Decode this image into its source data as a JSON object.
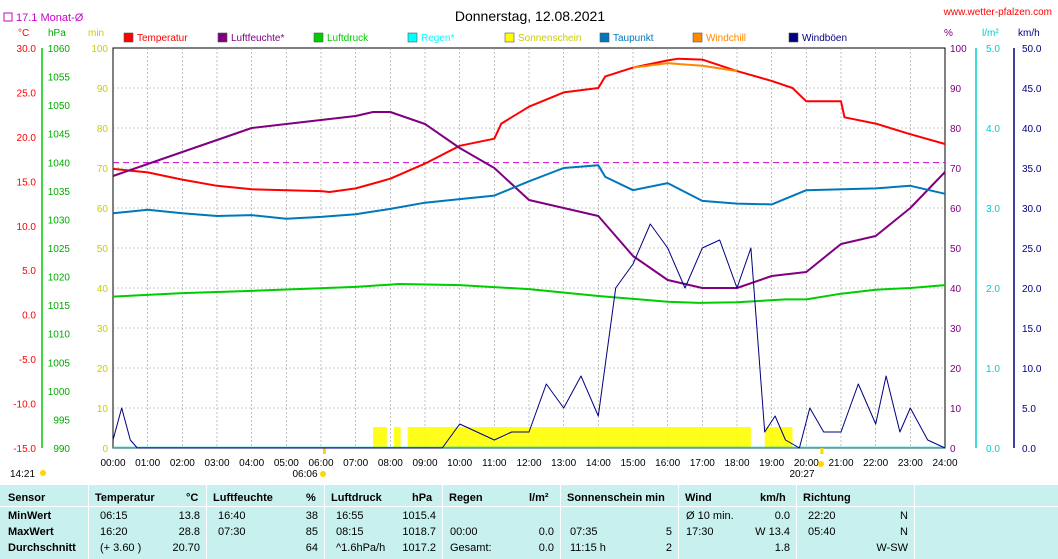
{
  "title": "Donnerstag, 12.08.2021",
  "site": "www.wetter-pfalzen.com",
  "monthly_avg_label": "17.1 Monat-Ø",
  "units": {
    "temp": "°C",
    "pressure": "hPa",
    "sun": "min",
    "humidity": "%",
    "rain": "l/m²",
    "wind": "km/h"
  },
  "time_left": "14:21",
  "sunrise": "06:06",
  "sunset": "20:27",
  "legend": [
    {
      "name": "Temperatur",
      "color": "#ff0000"
    },
    {
      "name": "Luftfeuchte*",
      "color": "#800080"
    },
    {
      "name": "Luftdruck",
      "color": "#00cc00"
    },
    {
      "name": "Regen*",
      "color": "#00ffff"
    },
    {
      "name": "Sonnenschein",
      "color": "#ffff00"
    },
    {
      "name": "Taupunkt",
      "color": "#0077bb"
    },
    {
      "name": "Windchill",
      "color": "#ff8800"
    },
    {
      "name": "Windböen",
      "color": "#000080"
    }
  ],
  "chart_data": {
    "type": "line",
    "title": "Donnerstag, 12.08.2021",
    "x_ticks": [
      "00:00",
      "01:00",
      "02:00",
      "03:00",
      "04:00",
      "05:00",
      "06:00",
      "07:00",
      "08:00",
      "09:00",
      "10:00",
      "11:00",
      "12:00",
      "13:00",
      "14:00",
      "15:00",
      "16:00",
      "17:00",
      "18:00",
      "19:00",
      "20:00",
      "21:00",
      "22:00",
      "23:00",
      "24:00"
    ],
    "axes": {
      "temp": {
        "ticks": [
          "30.0",
          "25.0",
          "20.0",
          "15.0",
          "10.0",
          "5.0",
          "0.0",
          "-5.0",
          "-10.0",
          "-15.0"
        ],
        "range": [
          -15,
          30
        ]
      },
      "pressure": {
        "ticks": [
          "1060",
          "1055",
          "1050",
          "1045",
          "1040",
          "1035",
          "1030",
          "1025",
          "1020",
          "1015",
          "1010",
          "1005",
          "1000",
          "995",
          "990"
        ],
        "range": [
          990,
          1060
        ]
      },
      "sun": {
        "ticks": [
          "100",
          "90",
          "80",
          "70",
          "60",
          "50",
          "40",
          "30",
          "20",
          "10",
          "0"
        ],
        "range": [
          0,
          100
        ]
      },
      "humidity": {
        "ticks": [
          "100",
          "90",
          "80",
          "70",
          "60",
          "50",
          "40",
          "30",
          "20",
          "10",
          "0"
        ],
        "range": [
          0,
          100
        ]
      },
      "rain": {
        "ticks": [
          "5.0",
          "4.0",
          "3.0",
          "2.0",
          "1.0",
          "0.0"
        ],
        "range": [
          0,
          5
        ]
      },
      "wind": {
        "ticks": [
          "50.0",
          "45.0",
          "40.0",
          "35.0",
          "30.0",
          "25.0",
          "20.0",
          "15.0",
          "10.0",
          "5.0",
          "0.0"
        ],
        "range": [
          0,
          50
        ]
      }
    },
    "monthly_avg_temp": 17.1,
    "series": [
      {
        "name": "Temperatur",
        "axis": "temp",
        "points": [
          [
            0,
            16.4
          ],
          [
            1,
            16.0
          ],
          [
            2,
            15.2
          ],
          [
            3,
            14.5
          ],
          [
            4,
            14.1
          ],
          [
            5,
            14.0
          ],
          [
            6,
            13.9
          ],
          [
            6.25,
            13.8
          ],
          [
            7,
            14.2
          ],
          [
            8,
            15.3
          ],
          [
            9,
            17.0
          ],
          [
            10,
            19.0
          ],
          [
            11,
            19.8
          ],
          [
            11.2,
            21.5
          ],
          [
            12,
            23.4
          ],
          [
            13,
            25.0
          ],
          [
            14,
            25.5
          ],
          [
            14.2,
            26.8
          ],
          [
            15,
            27.8
          ],
          [
            16,
            28.6
          ],
          [
            16.3,
            28.8
          ],
          [
            17,
            28.7
          ],
          [
            18,
            27.4
          ],
          [
            19,
            26.3
          ],
          [
            19.6,
            25.5
          ],
          [
            20,
            24.0
          ],
          [
            21,
            24.0
          ],
          [
            21.1,
            22.2
          ],
          [
            22,
            21.5
          ],
          [
            23,
            20.3
          ],
          [
            24,
            19.2
          ]
        ]
      },
      {
        "name": "Windchill",
        "axis": "temp",
        "points": [
          [
            15,
            27.8
          ],
          [
            16,
            28.3
          ],
          [
            16.3,
            28.2
          ],
          [
            17,
            28.0
          ],
          [
            17.5,
            27.7
          ],
          [
            18,
            27.4
          ]
        ]
      },
      {
        "name": "Luftfeuchte*",
        "axis": "humidity",
        "points": [
          [
            0,
            68
          ],
          [
            1,
            71
          ],
          [
            2,
            74
          ],
          [
            3,
            77
          ],
          [
            4,
            80
          ],
          [
            5,
            81
          ],
          [
            6,
            82
          ],
          [
            7,
            83
          ],
          [
            7.5,
            84
          ],
          [
            8,
            84
          ],
          [
            9,
            81
          ],
          [
            10,
            75
          ],
          [
            11,
            70
          ],
          [
            12,
            62
          ],
          [
            13,
            60
          ],
          [
            14,
            58
          ],
          [
            15,
            48
          ],
          [
            16,
            42
          ],
          [
            17,
            40
          ],
          [
            18,
            40
          ],
          [
            19,
            43
          ],
          [
            20,
            44
          ],
          [
            21,
            51
          ],
          [
            22,
            53
          ],
          [
            23,
            60
          ],
          [
            24,
            69
          ]
        ]
      },
      {
        "name": "Luftdruck",
        "axis": "pressure",
        "points": [
          [
            0,
            1016.5
          ],
          [
            2,
            1017.1
          ],
          [
            4,
            1017.5
          ],
          [
            7,
            1018.2
          ],
          [
            8.25,
            1018.7
          ],
          [
            10,
            1018.5
          ],
          [
            12,
            1017.8
          ],
          [
            14,
            1016.6
          ],
          [
            16,
            1015.6
          ],
          [
            16.9,
            1015.4
          ],
          [
            18,
            1015.5
          ],
          [
            19.4,
            1016.0
          ],
          [
            20,
            1016.0
          ],
          [
            21,
            1017.0
          ],
          [
            22,
            1017.7
          ],
          [
            23,
            1018.0
          ],
          [
            24,
            1018.5
          ]
        ]
      },
      {
        "name": "Taupunkt",
        "axis": "temp",
        "points": [
          [
            0,
            11.4
          ],
          [
            1,
            11.8
          ],
          [
            2,
            11.4
          ],
          [
            3,
            11.1
          ],
          [
            4,
            11.2
          ],
          [
            5,
            10.8
          ],
          [
            6,
            11.0
          ],
          [
            7,
            11.3
          ],
          [
            8,
            11.9
          ],
          [
            9,
            12.6
          ],
          [
            10,
            13.0
          ],
          [
            11,
            13.4
          ],
          [
            12,
            15.0
          ],
          [
            13,
            16.5
          ],
          [
            14,
            16.8
          ],
          [
            14.2,
            15.5
          ],
          [
            15,
            14.0
          ],
          [
            16,
            14.8
          ],
          [
            17,
            12.8
          ],
          [
            18,
            12.5
          ],
          [
            19,
            12.4
          ],
          [
            20,
            14.0
          ],
          [
            22,
            14.2
          ],
          [
            23,
            14.5
          ],
          [
            24,
            13.6
          ]
        ]
      },
      {
        "name": "Windböen",
        "axis": "wind",
        "points": [
          [
            0,
            1
          ],
          [
            0.25,
            5
          ],
          [
            0.5,
            1
          ],
          [
            0.7,
            0
          ],
          [
            9.5,
            0
          ],
          [
            10,
            3
          ],
          [
            11,
            1
          ],
          [
            11.5,
            2
          ],
          [
            12,
            2
          ],
          [
            12.5,
            8
          ],
          [
            13,
            5
          ],
          [
            13.5,
            9
          ],
          [
            14,
            4
          ],
          [
            14.5,
            20
          ],
          [
            15,
            23
          ],
          [
            15.5,
            28
          ],
          [
            16,
            25
          ],
          [
            16.5,
            20
          ],
          [
            17,
            25
          ],
          [
            17.5,
            26
          ],
          [
            18,
            20
          ],
          [
            18.4,
            25
          ],
          [
            18.8,
            2
          ],
          [
            19.1,
            4
          ],
          [
            19.4,
            1
          ],
          [
            19.8,
            0
          ],
          [
            20.1,
            5
          ],
          [
            20.5,
            2
          ],
          [
            21,
            2
          ],
          [
            21.5,
            8
          ],
          [
            22,
            3
          ],
          [
            22.3,
            9
          ],
          [
            22.7,
            2
          ],
          [
            23,
            5
          ],
          [
            23.5,
            1
          ],
          [
            24,
            0
          ]
        ]
      }
    ],
    "sunshine_blocks": [
      [
        7.5,
        7.9
      ],
      [
        8.1,
        8.3
      ],
      [
        8.5,
        18.4
      ],
      [
        18.8,
        19.6
      ]
    ]
  },
  "table": {
    "headers": {
      "sensor": "Sensor",
      "temp": "Temperatur",
      "temp_unit": "°C",
      "hum": "Luftfeuchte",
      "hum_unit": "%",
      "press": "Luftdruck",
      "press_unit": "hPa",
      "rain": "Regen",
      "rain_unit": "l/m²",
      "sun": "Sonnenschein min",
      "wind": "Wind",
      "wind_unit": "km/h",
      "dir": "Richtung"
    },
    "rows": [
      {
        "label": "MinWert",
        "temp_time": "06:15",
        "temp_val": "13.8",
        "hum_time": "16:40",
        "hum_val": "38",
        "press_time": "16:55",
        "press_val": "1015.4",
        "rain_time": "",
        "rain_val": "",
        "sun_time": "",
        "sun_val": "",
        "wind_time": "Ø 10 min.",
        "wind_val": "0.0",
        "dir_time": "22:20",
        "dir_val": "N"
      },
      {
        "label": "MaxWert",
        "temp_time": "16:20",
        "temp_val": "28.8",
        "hum_time": "07:30",
        "hum_val": "85",
        "press_time": "08:15",
        "press_val": "1018.7",
        "rain_time": "00:00",
        "rain_val": "0.0",
        "sun_time": "07:35",
        "sun_val": "5",
        "wind_time": "17:30",
        "wind_val": "W 13.4",
        "dir_time": "05:40",
        "dir_val": "N"
      },
      {
        "label": "Durchschnitt",
        "temp_time": "(+ 3.60 )",
        "temp_val": "20.70",
        "hum_time": "",
        "hum_val": "64",
        "press_time": "^1.6hPa/h",
        "press_val": "1017.2",
        "rain_time": "Gesamt:",
        "rain_val": "0.0",
        "sun_time": "11:15 h",
        "sun_val": "2",
        "wind_time": "",
        "wind_val": "1.8",
        "dir_time": "",
        "dir_val": "W-SW"
      }
    ]
  }
}
